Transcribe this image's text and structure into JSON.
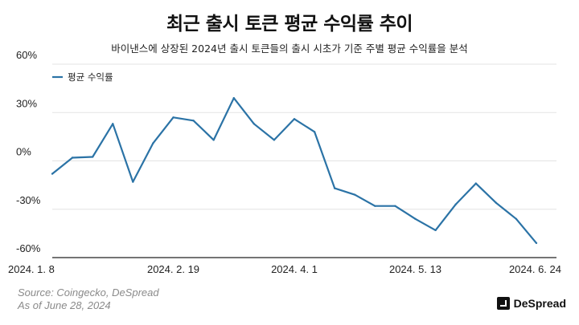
{
  "title": "최근 출시 토큰 평균 수익률 추이",
  "subtitle": "바이낸스에 상장된 2024년 출시 토큰들의 출시 시초가 기준 주별 평균 수익률을 분석",
  "source_line1": "Source: Coingecko, DeSpread",
  "source_line2": "As of June 28, 2024",
  "brand": "DeSpread",
  "colors": {
    "line": "#2b73a6",
    "grid": "#e3e3e3",
    "axis": "#222222"
  },
  "chart_data": {
    "type": "line",
    "title": "최근 출시 토큰 평균 수익률 추이",
    "xlabel": "",
    "ylabel": "",
    "ylim": [
      -60,
      60
    ],
    "yticks": [
      60,
      30,
      0,
      -30,
      -60
    ],
    "ytick_labels": [
      "60%",
      "30%",
      "0%",
      "-30%",
      "-60%"
    ],
    "xtick_labels": [
      "2024. 1. 8",
      "2024. 2. 19",
      "2024. 4. 1",
      "2024. 5. 13",
      "2024. 6. 24"
    ],
    "xtick_index": [
      0,
      6,
      12,
      18,
      24
    ],
    "grid": true,
    "legend": "top-left",
    "series": [
      {
        "name": "평균 수익률",
        "x": [
          "2024-01-08",
          "2024-01-15",
          "2024-01-22",
          "2024-01-29",
          "2024-02-05",
          "2024-02-12",
          "2024-02-19",
          "2024-02-26",
          "2024-03-04",
          "2024-03-11",
          "2024-03-18",
          "2024-03-25",
          "2024-04-01",
          "2024-04-08",
          "2024-04-15",
          "2024-04-22",
          "2024-04-29",
          "2024-05-06",
          "2024-05-13",
          "2024-05-20",
          "2024-05-27",
          "2024-06-03",
          "2024-06-10",
          "2024-06-17",
          "2024-06-24"
        ],
        "values": [
          -8,
          2,
          2.5,
          23,
          -13,
          11,
          27,
          25,
          13,
          39,
          23,
          13,
          26,
          18,
          -17,
          -21,
          -28,
          -28,
          -36,
          -43,
          -27,
          -14,
          -26,
          -36,
          -51
        ]
      }
    ]
  }
}
